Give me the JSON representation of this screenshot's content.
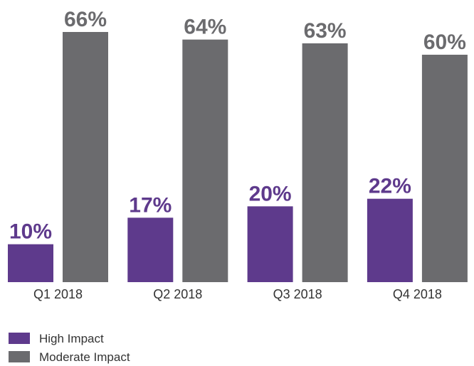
{
  "chart_data": {
    "type": "bar",
    "categories": [
      "Q1 2018",
      "Q2 2018",
      "Q3 2018",
      "Q4 2018"
    ],
    "series": [
      {
        "name": "High Impact",
        "color": "#5e3a8c",
        "values": [
          10,
          17,
          20,
          22
        ],
        "value_labels": [
          "10%",
          "17%",
          "20%",
          "22%"
        ]
      },
      {
        "name": "Moderate Impact",
        "color": "#6b6b6e",
        "values": [
          66,
          64,
          63,
          60
        ],
        "value_labels": [
          "66%",
          "64%",
          "63%",
          "60%"
        ]
      }
    ]
  }
}
